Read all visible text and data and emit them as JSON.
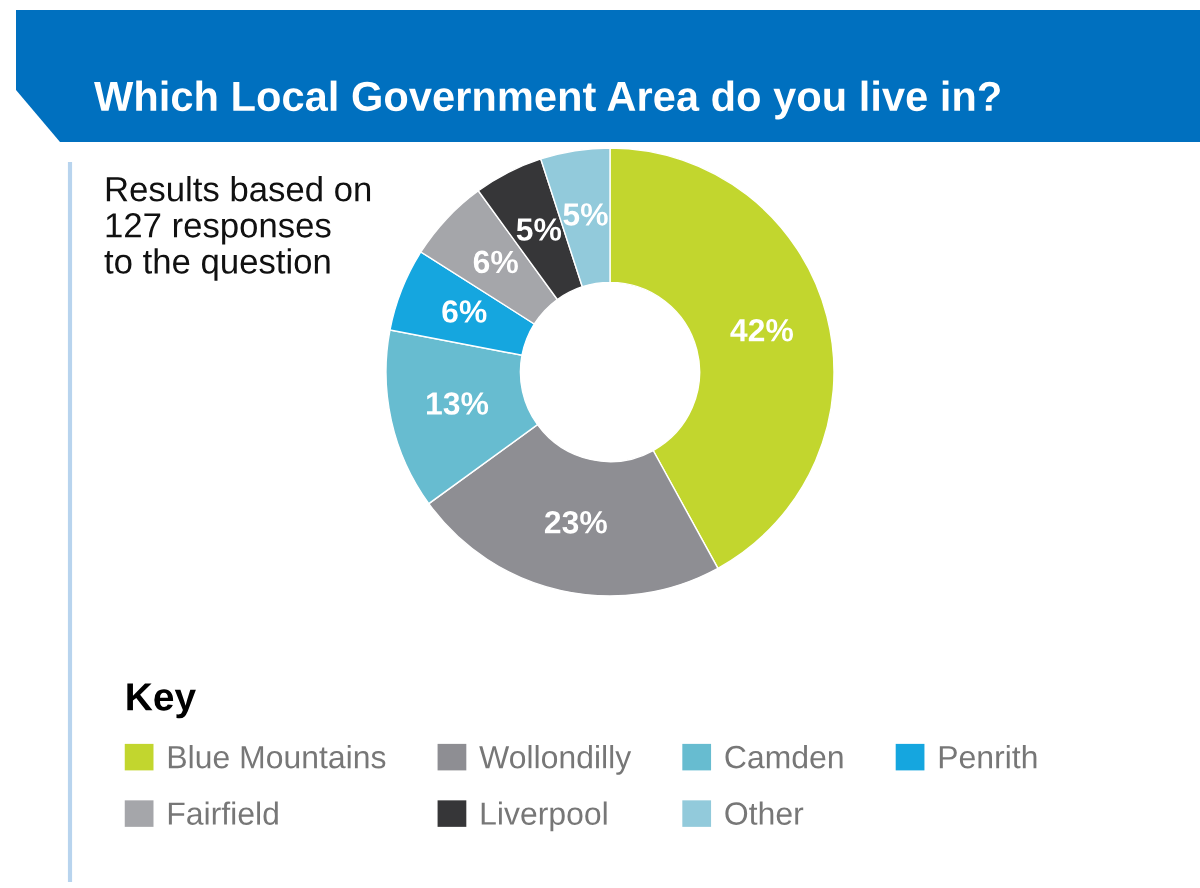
{
  "chart_data": {
    "type": "donut",
    "title": "Which Local Government Area do you live in?",
    "annotations": [
      "Results based on\n127 responses\nto the question"
    ],
    "legend_title": "Key",
    "legend": "bottom left",
    "categories": [
      "Blue Mountains",
      "Wollondilly",
      "Camden",
      "Penrith",
      "Fairfield",
      "Liverpool",
      "Other"
    ],
    "values": [
      42,
      23,
      13,
      6,
      6,
      5,
      5
    ],
    "colors": [
      "#c2d62e",
      "#8e8e93",
      "#67bcd0",
      "#15a6df",
      "#a5a6aa",
      "#363638",
      "#92cadb"
    ],
    "value_labels": [
      "42%",
      "23%",
      "13%",
      "6%",
      "6%",
      "5%",
      "5%"
    ]
  }
}
